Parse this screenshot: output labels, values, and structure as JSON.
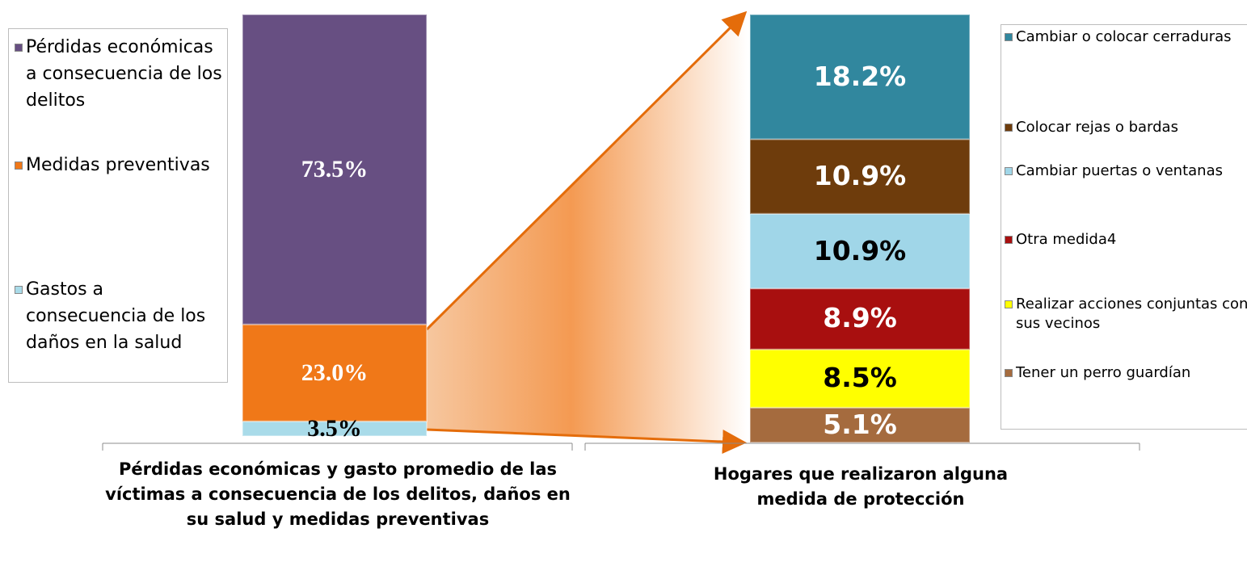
{
  "chart_data": [
    {
      "type": "stacked_bar",
      "categories": [
        "Pérdidas económicas y gasto promedio de las víctimas a consecuencia de los delitos, daños en su salud y medidas preventivas"
      ],
      "ylim": [
        0,
        100
      ],
      "series": [
        {
          "name": "Pérdidas económicas a consecuencia de los delitos",
          "color": "#674f82",
          "values": [
            73.5
          ],
          "value_labels": [
            "73.5%"
          ]
        },
        {
          "name": "Medidas preventivas",
          "color": "#f07818",
          "values": [
            23.0
          ],
          "value_labels": [
            "23.0%"
          ]
        },
        {
          "name": "Gastos a consecuencia de los daños en la salud",
          "color": "#a9dbe9",
          "values": [
            3.5
          ],
          "value_labels": [
            "3.5%"
          ]
        }
      ]
    },
    {
      "type": "stacked_bar",
      "categories": [
        "Hogares que realizaron alguna medida de protección"
      ],
      "ylim": [
        0,
        62.5
      ],
      "series": [
        {
          "name": "Cambiar o colocar cerraduras",
          "color": "#31879e",
          "values": [
            18.2
          ],
          "value_labels": [
            "18.2%"
          ]
        },
        {
          "name": "Colocar rejas o bardas",
          "color": "#6e3c0c",
          "values": [
            10.9
          ],
          "value_labels": [
            "10.9%"
          ]
        },
        {
          "name": "Cambiar puertas o ventanas",
          "color": "#a0d6e8",
          "values": [
            10.9
          ],
          "value_labels": [
            "10.9%"
          ]
        },
        {
          "name": "Otra medida4",
          "color": "#a80f0f",
          "values": [
            8.9
          ],
          "value_labels": [
            "8.9%"
          ]
        },
        {
          "name": "Realizar acciones conjuntas con sus vecinos",
          "color": "#ffff00",
          "values": [
            8.5
          ],
          "value_labels": [
            "8.5%"
          ]
        },
        {
          "name": "Tener un perro guardían",
          "color": "#a56b3e",
          "values": [
            5.1
          ],
          "value_labels": [
            "5.1%"
          ]
        }
      ]
    }
  ]
}
